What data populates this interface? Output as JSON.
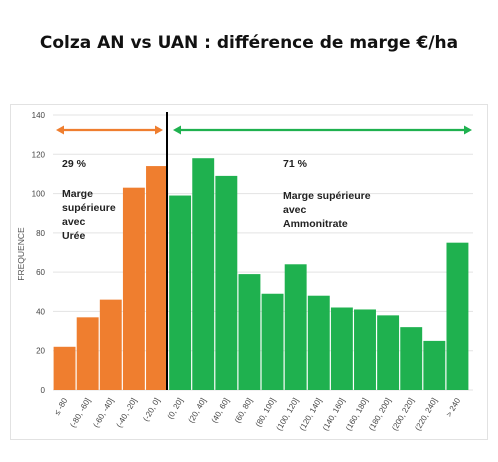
{
  "title": "Colza AN vs UAN : différence de marge €/ha",
  "colors": {
    "left": "#ef7e2f",
    "right": "#1fb14f",
    "divider": "#000000",
    "grid": "#e3e3e3"
  },
  "chart_data": {
    "type": "bar",
    "ylabel": "FREQUENCE",
    "ylim": [
      0,
      140
    ],
    "yticks": [
      0,
      20,
      40,
      60,
      80,
      100,
      120,
      140
    ],
    "grid": true,
    "categories": [
      "≤ -80",
      "(-80, -60]",
      "(-60, -40]",
      "(-40, -20]",
      "(-20, 0]",
      "(0, 20]",
      "(20, 40]",
      "(40, 60]",
      "(60, 80]",
      "(80, 100]",
      "(100, 120]",
      "(120, 140]",
      "(140, 160]",
      "(160, 180]",
      "(180, 200]",
      "(200, 220]",
      "(220, 240]",
      "> 240"
    ],
    "values": [
      22,
      37,
      46,
      103,
      114,
      99,
      118,
      109,
      59,
      49,
      64,
      48,
      42,
      41,
      38,
      32,
      25,
      75
    ],
    "left_group_count": 5,
    "annotations": {
      "left": {
        "percent": "29 %",
        "lines": [
          "Marge",
          "supérieure",
          "avec",
          "Urée"
        ]
      },
      "right": {
        "percent": "71 %",
        "lines": [
          "Marge supérieure",
          "avec",
          "Ammonitrate"
        ]
      }
    }
  }
}
